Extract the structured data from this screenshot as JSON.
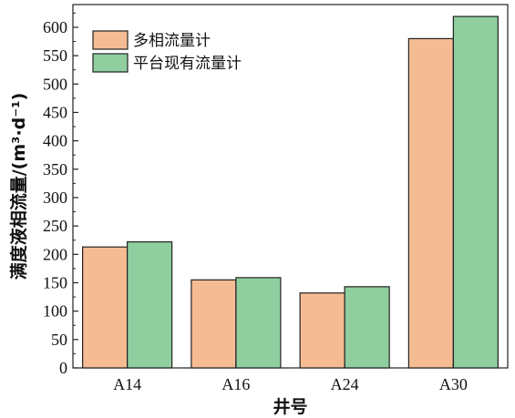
{
  "chart_data": {
    "type": "bar",
    "categories": [
      "A14",
      "A16",
      "A24",
      "A30"
    ],
    "series": [
      {
        "name": "多相流量计",
        "values": [
          213,
          155,
          132,
          580
        ],
        "color": "#F5BC94"
      },
      {
        "name": "平台现有流量计",
        "values": [
          222,
          159,
          143,
          619
        ],
        "color": "#8FCE9F"
      }
    ],
    "xlabel": "井号",
    "ylabel": "满度液相流量/(m³·d⁻¹)",
    "ylim": [
      0,
      640
    ],
    "yticks": [
      0,
      50,
      100,
      150,
      200,
      250,
      300,
      350,
      400,
      450,
      500,
      550,
      600
    ],
    "grid": false,
    "legend_position": "top-left"
  }
}
